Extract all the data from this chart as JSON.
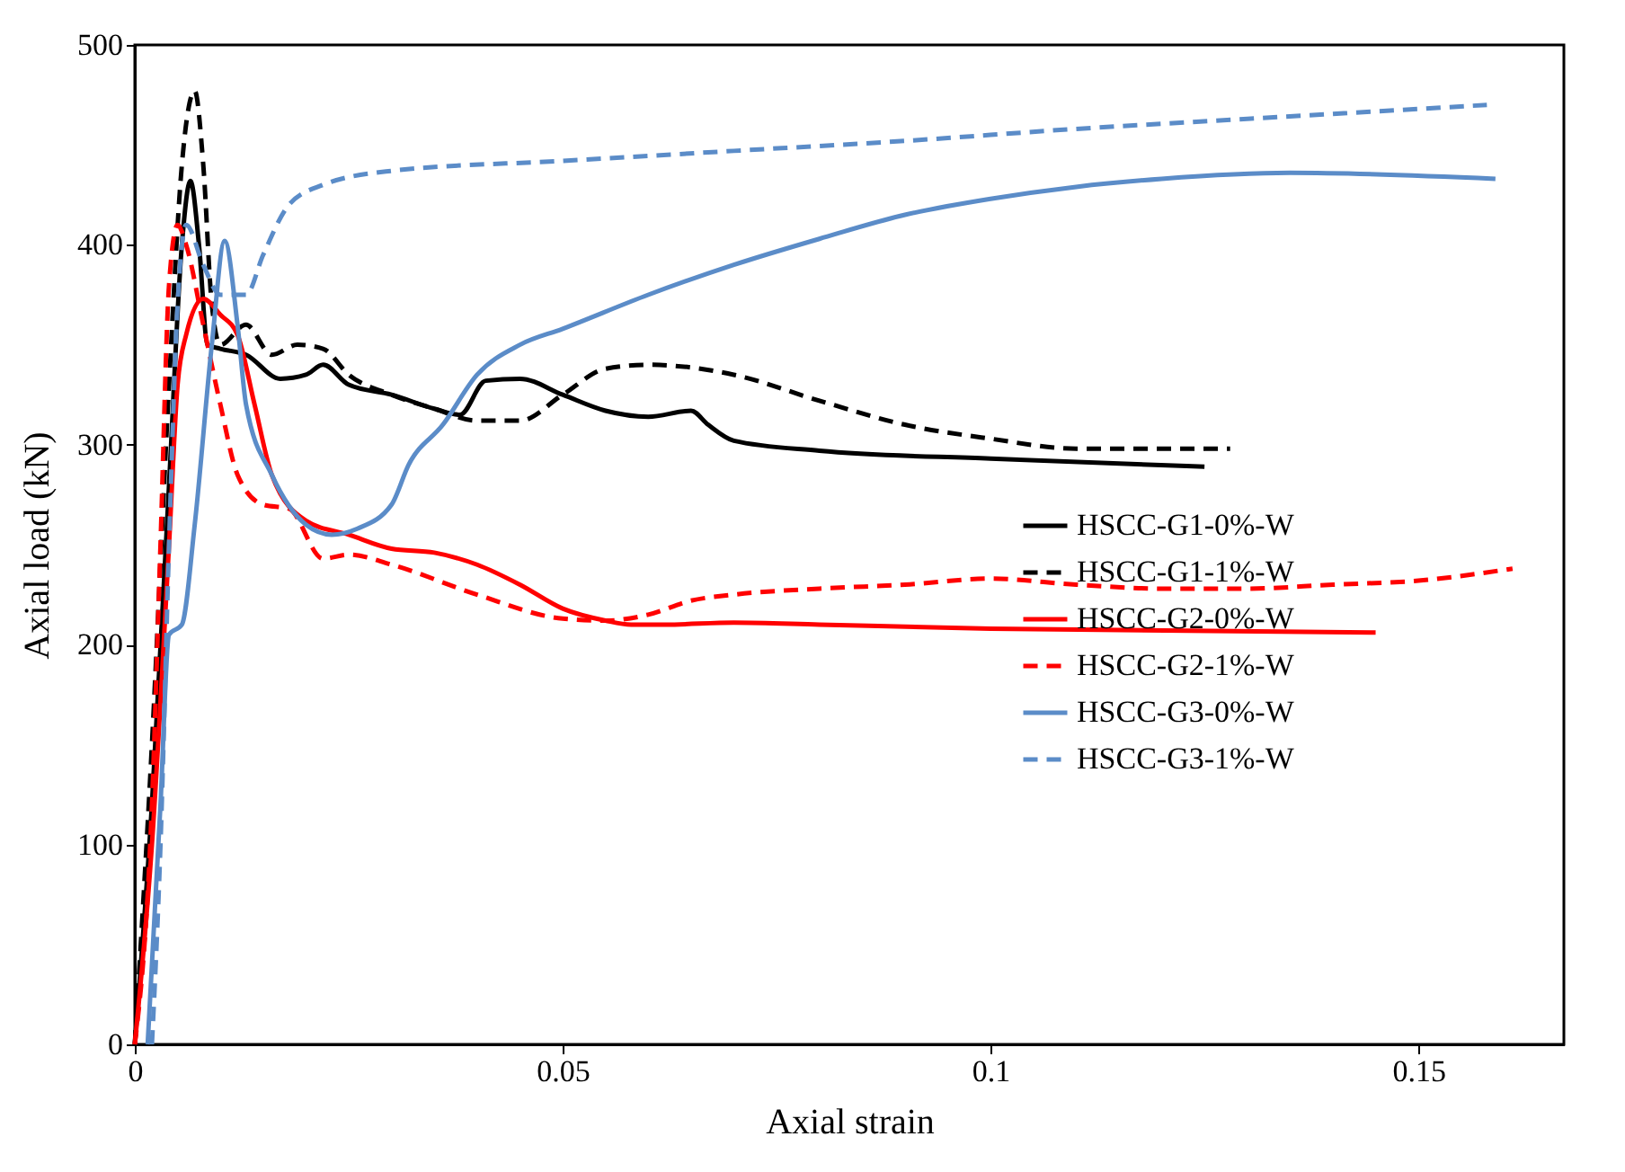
{
  "chart_data": {
    "type": "line",
    "xlabel": "Axial strain",
    "ylabel": "Axial load (kN)",
    "xlim": [
      0,
      0.167
    ],
    "xticks": [
      0,
      0.05,
      0.1,
      0.15
    ],
    "ylim": [
      0,
      500
    ],
    "yticks": [
      0,
      100,
      200,
      300,
      400,
      500
    ],
    "grid": false,
    "legend": "bottom right",
    "marker": "none",
    "series": [
      {
        "name": "HSCC-G1-0%-W",
        "color": "#000000",
        "line_style": "solid",
        "x": [
          0,
          0.002,
          0.004,
          0.0055,
          0.0065,
          0.0075,
          0.0085,
          0.01,
          0.013,
          0.017,
          0.02,
          0.022,
          0.025,
          0.03,
          0.035,
          0.038,
          0.041,
          0.045,
          0.05,
          0.055,
          0.06,
          0.065,
          0.067,
          0.07,
          0.08,
          0.1,
          0.125
        ],
        "values": [
          0,
          120,
          280,
          400,
          432,
          400,
          350,
          348,
          345,
          333,
          335,
          340,
          330,
          325,
          318,
          315,
          332,
          333,
          325,
          317,
          314,
          317,
          310,
          302,
          297,
          293,
          289
        ]
      },
      {
        "name": "HSCC-G1-1%-W",
        "color": "#000000",
        "line_style": "dashed",
        "x": [
          0,
          0.002,
          0.004,
          0.0055,
          0.007,
          0.008,
          0.009,
          0.01,
          0.013,
          0.016,
          0.019,
          0.022,
          0.025,
          0.03,
          0.035,
          0.04,
          0.045,
          0.05,
          0.055,
          0.06,
          0.07,
          0.08,
          0.09,
          0.1,
          0.11,
          0.128
        ],
        "values": [
          0,
          150,
          330,
          440,
          477,
          440,
          370,
          350,
          360,
          345,
          350,
          348,
          335,
          325,
          318,
          312,
          312,
          325,
          338,
          340,
          335,
          322,
          310,
          303,
          298,
          298
        ]
      },
      {
        "name": "HSCC-G2-0%-W",
        "color": "#ff0000",
        "line_style": "solid",
        "x": [
          0,
          0.002,
          0.004,
          0.005,
          0.006,
          0.008,
          0.01,
          0.012,
          0.014,
          0.016,
          0.02,
          0.025,
          0.03,
          0.035,
          0.04,
          0.045,
          0.05,
          0.055,
          0.058,
          0.062,
          0.07,
          0.08,
          0.1,
          0.145
        ],
        "values": [
          0,
          100,
          250,
          330,
          355,
          373,
          365,
          355,
          320,
          285,
          262,
          255,
          248,
          246,
          240,
          230,
          218,
          212,
          210,
          210,
          211,
          210,
          208,
          206
        ]
      },
      {
        "name": "HSCC-G2-1%-W",
        "color": "#ff0000",
        "line_style": "dashed",
        "x": [
          0,
          0.002,
          0.003,
          0.004,
          0.005,
          0.006,
          0.008,
          0.01,
          0.012,
          0.015,
          0.018,
          0.022,
          0.025,
          0.03,
          0.04,
          0.05,
          0.055,
          0.06,
          0.065,
          0.07,
          0.08,
          0.09,
          0.1,
          0.11,
          0.12,
          0.13,
          0.14,
          0.15,
          0.161
        ],
        "values": [
          0,
          120,
          250,
          380,
          410,
          400,
          360,
          320,
          285,
          270,
          268,
          243,
          245,
          240,
          225,
          213,
          212,
          215,
          222,
          225,
          228,
          230,
          233,
          230,
          228,
          228,
          230,
          232,
          238
        ]
      },
      {
        "name": "HSCC-G3-0%-W",
        "color": "#5b8cc8",
        "line_style": "solid",
        "x": [
          0.0015,
          0.003,
          0.004,
          0.0055,
          0.007,
          0.009,
          0.0105,
          0.012,
          0.013,
          0.016,
          0.02,
          0.023,
          0.026,
          0.03,
          0.032,
          0.036,
          0.04,
          0.045,
          0.05,
          0.06,
          0.07,
          0.08,
          0.09,
          0.1,
          0.11,
          0.12,
          0.135,
          0.159
        ],
        "values": [
          0,
          120,
          205,
          210,
          260,
          350,
          402,
          360,
          320,
          285,
          260,
          255,
          258,
          270,
          290,
          310,
          335,
          350,
          358,
          375,
          390,
          403,
          415,
          423,
          429,
          433,
          436,
          433
        ]
      },
      {
        "name": "HSCC-G3-1%-W",
        "color": "#5b8cc8",
        "line_style": "dashed",
        "x": [
          0.002,
          0.003,
          0.004,
          0.005,
          0.006,
          0.008,
          0.01,
          0.013,
          0.015,
          0.018,
          0.022,
          0.03,
          0.05,
          0.07,
          0.09,
          0.11,
          0.13,
          0.158
        ],
        "values": [
          0,
          100,
          250,
          370,
          410,
          390,
          375,
          375,
          395,
          420,
          430,
          437,
          442,
          447,
          452,
          458,
          463,
          470
        ]
      }
    ]
  }
}
